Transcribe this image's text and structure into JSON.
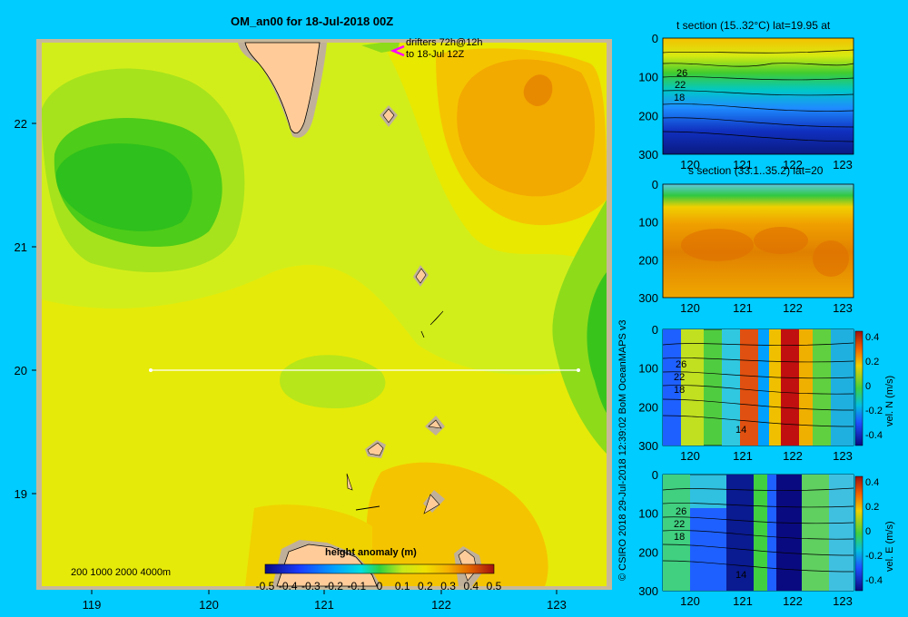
{
  "header": {
    "title": "OM_an00 for 18-Jul-2018 00Z",
    "drifters_line1": "drifters 72h@12h",
    "drifters_line2": "to 18-Jul 12Z",
    "bathy_legend": "200  1000  2000  4000m",
    "credit": "© CSIRO 2018   29-Jul-2018 12:39:02 BoM OceanMAPS v3",
    "colorbar_label": "height anomaly  (m)"
  },
  "chart_data": [
    {
      "type": "heatmap",
      "title": "OM_an00 for 18-Jul-2018 00Z",
      "xlabel": "",
      "ylabel": "",
      "xlim": [
        118.5,
        123.5
      ],
      "ylim": [
        18.3,
        22.7
      ],
      "x_ticks": [
        "119",
        "120",
        "121",
        "122",
        "123"
      ],
      "y_ticks": [
        "19",
        "20",
        "21",
        "22"
      ],
      "variable": "height anomaly (m)",
      "section_line": {
        "lat": 20,
        "lon_start": 119.5,
        "lon_end": 123.2
      },
      "colorbar": {
        "ticks": [
          "-0.5",
          "-0.4",
          "-0.3",
          "-0.2",
          "-0.1",
          "0",
          "0.1",
          "0.2",
          "0.3",
          "0.4",
          "0.5"
        ],
        "range": [
          -0.5,
          0.5
        ]
      },
      "grid": false
    },
    {
      "type": "heatmap",
      "title": "t section (15..32°C) lat=19.95 at",
      "x_ticks": [
        "120",
        "121",
        "122",
        "123"
      ],
      "y_ticks": [
        "0",
        "100",
        "200",
        "300"
      ],
      "contour_labels": [
        "26",
        "22",
        "18"
      ]
    },
    {
      "type": "heatmap",
      "title": "s section (33.1..35.2) lat=20",
      "x_ticks": [
        "120",
        "121",
        "122",
        "123"
      ],
      "y_ticks": [
        "0",
        "100",
        "200",
        "300"
      ]
    },
    {
      "type": "heatmap",
      "title": "",
      "x_ticks": [
        "120",
        "121",
        "122",
        "123"
      ],
      "y_ticks": [
        "0",
        "100",
        "200",
        "300"
      ],
      "contour_labels": [
        "26",
        "22",
        "18",
        "14"
      ],
      "colorbar": {
        "label": "vel. N (m/s)",
        "ticks": [
          "0.4",
          "0.2",
          "0",
          "-0.2",
          "-0.4"
        ]
      }
    },
    {
      "type": "heatmap",
      "title": "",
      "x_ticks": [
        "120",
        "121",
        "122",
        "123"
      ],
      "y_ticks": [
        "0",
        "100",
        "200",
        "300"
      ],
      "contour_labels": [
        "26",
        "22",
        "18",
        "14"
      ],
      "colorbar": {
        "label": "vel. E (m/s)",
        "ticks": [
          "0.4",
          "0.2",
          "0",
          "-0.2",
          "-0.4"
        ]
      }
    }
  ],
  "colors": {
    "background": "#00ccff",
    "land": "#ffcc99",
    "drifter": "#ff00ff"
  }
}
